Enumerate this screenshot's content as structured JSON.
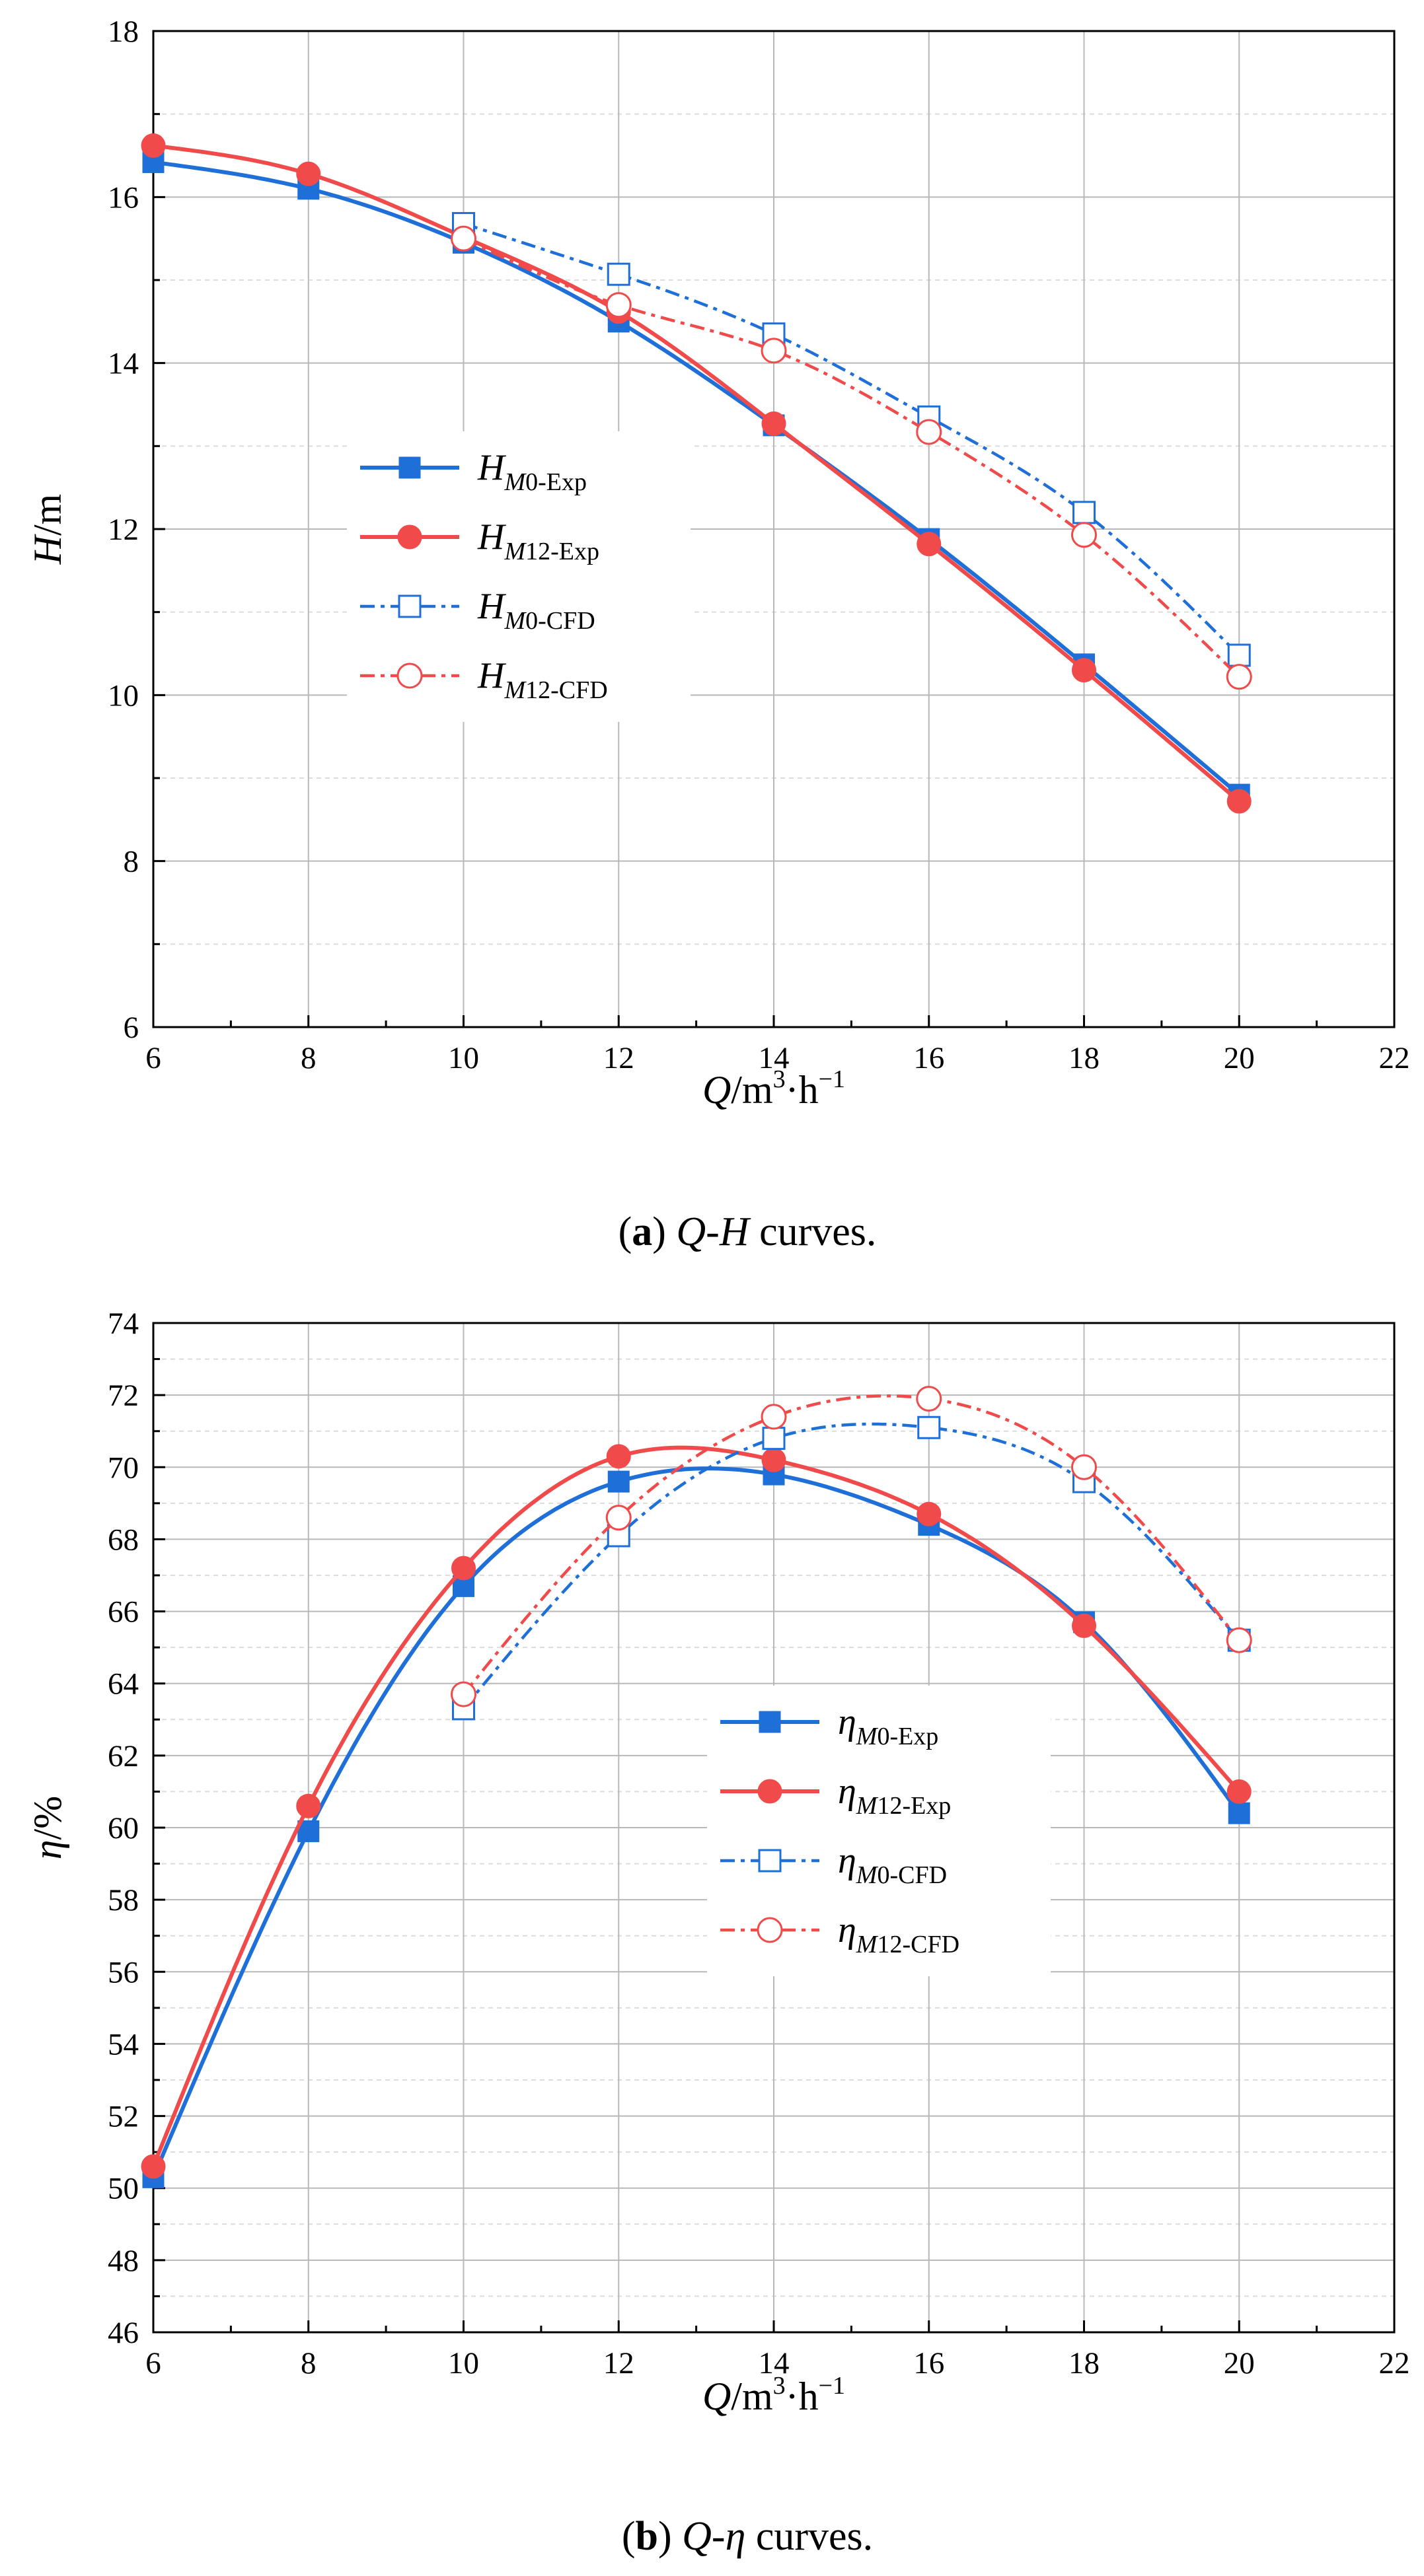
{
  "colors": {
    "blue": "#1f6fd8",
    "red": "#f04a4a",
    "grid_major": "#b8b8b8",
    "grid_minor": "#dcdcdc",
    "axis": "#000000"
  },
  "chart_data": [
    {
      "type": "line",
      "caption": {
        "label": "a",
        "text": "Q-H curves."
      },
      "xlabel": "Q/m³·h⁻¹",
      "ylabel": "H/m",
      "xlim": [
        6,
        22
      ],
      "ylim": [
        6,
        18
      ],
      "xticks": [
        6,
        8,
        10,
        12,
        14,
        16,
        18,
        20,
        22
      ],
      "yticks": [
        6,
        8,
        10,
        12,
        14,
        16,
        18
      ],
      "grid": true,
      "legend_position": "center-left",
      "series": [
        {
          "name": "HM0-Exp",
          "legend": {
            "base": "H",
            "sub": "M",
            "rest": "0-Exp"
          },
          "color": "blue",
          "dash": "solid",
          "marker": "square",
          "filled": true,
          "x": [
            6,
            8,
            10,
            12,
            14,
            16,
            18,
            20
          ],
          "y": [
            16.42,
            16.1,
            15.45,
            14.5,
            13.25,
            11.88,
            10.37,
            8.8
          ]
        },
        {
          "name": "HM12-Exp",
          "legend": {
            "base": "H",
            "sub": "M",
            "rest": "12-Exp"
          },
          "color": "red",
          "dash": "solid",
          "marker": "circle",
          "filled": true,
          "x": [
            6,
            8,
            10,
            12,
            14,
            16,
            18,
            20
          ],
          "y": [
            16.62,
            16.28,
            15.52,
            14.62,
            13.27,
            11.82,
            10.3,
            8.72
          ]
        },
        {
          "name": "HM0-CFD",
          "legend": {
            "base": "H",
            "sub": "M",
            "rest": "0-CFD"
          },
          "color": "blue",
          "dash": "dashdot",
          "marker": "square",
          "filled": false,
          "x": [
            10,
            12,
            14,
            16,
            18,
            20
          ],
          "y": [
            15.68,
            15.07,
            14.35,
            13.35,
            12.2,
            10.48
          ]
        },
        {
          "name": "HM12-CFD",
          "legend": {
            "base": "H",
            "sub": "M",
            "rest": "12-CFD"
          },
          "color": "red",
          "dash": "dashdot",
          "marker": "circle",
          "filled": false,
          "x": [
            10,
            12,
            14,
            16,
            18,
            20
          ],
          "y": [
            15.5,
            14.7,
            14.15,
            13.17,
            11.93,
            10.22
          ]
        }
      ]
    },
    {
      "type": "line",
      "caption": {
        "label": "b",
        "text": "Q-η curves."
      },
      "xlabel": "Q/m³·h⁻¹",
      "ylabel": "η/%",
      "xlim": [
        6,
        22
      ],
      "ylim": [
        46,
        74
      ],
      "xticks": [
        6,
        8,
        10,
        12,
        14,
        16,
        18,
        20,
        22
      ],
      "yticks": [
        46,
        48,
        50,
        52,
        54,
        56,
        58,
        60,
        62,
        64,
        66,
        68,
        70,
        72,
        74
      ],
      "grid": true,
      "legend_position": "center-right",
      "series": [
        {
          "name": "ηM0-Exp",
          "legend": {
            "base": "η",
            "sub": "M",
            "rest": "0-Exp"
          },
          "color": "blue",
          "dash": "solid",
          "marker": "square",
          "filled": true,
          "x": [
            6,
            8,
            10,
            12,
            14,
            16,
            18,
            20
          ],
          "y": [
            50.3,
            59.9,
            66.7,
            69.6,
            69.8,
            68.4,
            65.7,
            60.4
          ]
        },
        {
          "name": "ηM12-Exp",
          "legend": {
            "base": "η",
            "sub": "M",
            "rest": "12-Exp"
          },
          "color": "red",
          "dash": "solid",
          "marker": "circle",
          "filled": true,
          "x": [
            6,
            8,
            10,
            12,
            14,
            16,
            18,
            20
          ],
          "y": [
            50.6,
            60.6,
            67.2,
            70.3,
            70.2,
            68.7,
            65.6,
            61.0
          ]
        },
        {
          "name": "ηM0-CFD",
          "legend": {
            "base": "η",
            "sub": "M",
            "rest": "0-CFD"
          },
          "color": "blue",
          "dash": "dashdot",
          "marker": "square",
          "filled": false,
          "x": [
            10,
            12,
            14,
            16,
            18,
            20
          ],
          "y": [
            63.3,
            68.1,
            70.8,
            71.1,
            69.6,
            65.2
          ]
        },
        {
          "name": "ηM12-CFD",
          "legend": {
            "base": "η",
            "sub": "M",
            "rest": "12-CFD"
          },
          "color": "red",
          "dash": "dashdot",
          "marker": "circle",
          "filled": false,
          "x": [
            10,
            12,
            14,
            16,
            18,
            20
          ],
          "y": [
            63.7,
            68.6,
            71.4,
            71.9,
            70.0,
            65.2
          ]
        }
      ]
    }
  ]
}
